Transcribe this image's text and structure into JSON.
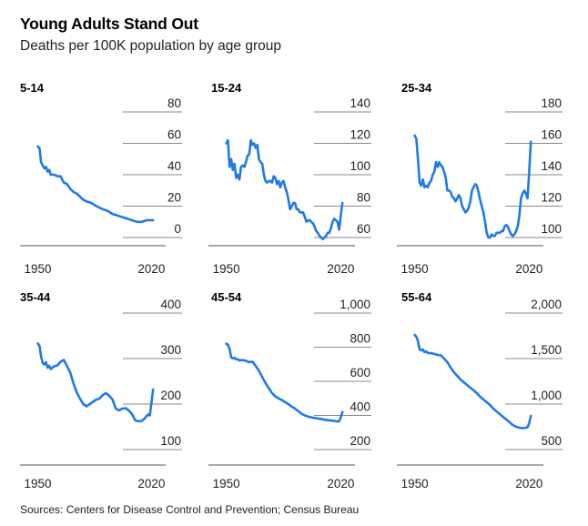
{
  "title": "Young Adults Stand Out",
  "subtitle": "Deaths per 100K population by age group",
  "source": "Sources: Centers for Disease Control and Prevention; Census Bureau",
  "colors": {
    "line": "#1f7ae8",
    "axis": "#555555",
    "gridline": "#888888"
  },
  "chart_data": [
    {
      "type": "line",
      "title": "5-14",
      "ylim": [
        0,
        80
      ],
      "yticks": [
        0,
        20,
        40,
        60,
        80
      ],
      "ytick_labels": [
        "0",
        "20",
        "40",
        "60",
        "80"
      ],
      "xlim": [
        1948,
        2022
      ],
      "xticks": [
        1950,
        2020
      ],
      "xtick_labels": [
        "1950",
        "2020"
      ],
      "series": [
        {
          "x": [
            1950,
            1951,
            1952,
            1953,
            1954,
            1955,
            1956,
            1957,
            1958,
            1960,
            1962,
            1964,
            1966,
            1968,
            1970,
            1972,
            1974,
            1976,
            1978,
            1980,
            1983,
            1986,
            1990,
            1993,
            1996,
            1999,
            2002,
            2005,
            2008,
            2011,
            2014,
            2017,
            2019,
            2020,
            2021
          ],
          "y": [
            58,
            57,
            48,
            46,
            44,
            45,
            42,
            43,
            40,
            40,
            39,
            39,
            35,
            34,
            31,
            29,
            28,
            26,
            24,
            23,
            22,
            20,
            18,
            17,
            15,
            14,
            13,
            12,
            11,
            10,
            10,
            11,
            11,
            11,
            11
          ]
        }
      ]
    },
    {
      "type": "line",
      "title": "15-24",
      "ylim": [
        55,
        140
      ],
      "yticks": [
        60,
        80,
        100,
        120,
        140
      ],
      "ytick_labels": [
        "60",
        "80",
        "100",
        "120",
        "140"
      ],
      "xlim": [
        1948,
        2022
      ],
      "xticks": [
        1950,
        2020
      ],
      "xtick_labels": [
        "1950",
        "2020"
      ],
      "series": [
        {
          "x": [
            1950,
            1951,
            1952,
            1953,
            1954,
            1955,
            1956,
            1957,
            1958,
            1959,
            1960,
            1961,
            1962,
            1963,
            1964,
            1965,
            1966,
            1967,
            1968,
            1969,
            1970,
            1971,
            1972,
            1973,
            1974,
            1975,
            1976,
            1977,
            1978,
            1979,
            1980,
            1981,
            1982,
            1983,
            1984,
            1985,
            1986,
            1987,
            1988,
            1989,
            1990,
            1991,
            1992,
            1993,
            1994,
            1995,
            1996,
            1997,
            1998,
            1999,
            2000,
            2001,
            2002,
            2003,
            2004,
            2005,
            2006,
            2007,
            2008,
            2009,
            2010,
            2011,
            2012,
            2013,
            2014,
            2015,
            2016,
            2017,
            2018,
            2019,
            2020,
            2021
          ],
          "y": [
            120,
            122,
            105,
            110,
            103,
            107,
            98,
            100,
            97,
            105,
            106,
            105,
            108,
            112,
            113,
            122,
            119,
            120,
            117,
            119,
            110,
            108,
            107,
            100,
            96,
            95,
            96,
            96,
            95,
            99,
            98,
            94,
            96,
            92,
            95,
            96,
            92,
            89,
            84,
            78,
            80,
            82,
            82,
            78,
            78,
            76,
            76,
            76,
            73,
            70,
            71,
            71,
            70,
            69,
            67,
            64,
            63,
            61,
            60,
            59,
            60,
            61,
            63,
            63,
            66,
            70,
            72,
            71,
            70,
            65,
            74,
            82
          ]
        }
      ]
    },
    {
      "type": "line",
      "title": "25-34",
      "ylim": [
        98,
        180
      ],
      "yticks": [
        100,
        120,
        140,
        160,
        180
      ],
      "ytick_labels": [
        "100",
        "120",
        "140",
        "160",
        "180"
      ],
      "xlim": [
        1948,
        2022
      ],
      "xticks": [
        1950,
        2020
      ],
      "xtick_labels": [
        "1950",
        "2020"
      ],
      "series": [
        {
          "x": [
            1950,
            1951,
            1952,
            1953,
            1954,
            1955,
            1956,
            1957,
            1958,
            1959,
            1960,
            1961,
            1962,
            1963,
            1964,
            1965,
            1966,
            1967,
            1968,
            1969,
            1970,
            1971,
            1972,
            1973,
            1974,
            1975,
            1976,
            1977,
            1978,
            1979,
            1980,
            1981,
            1982,
            1983,
            1984,
            1985,
            1986,
            1987,
            1988,
            1989,
            1990,
            1991,
            1992,
            1993,
            1994,
            1995,
            1996,
            1997,
            1998,
            1999,
            2000,
            2001,
            2002,
            2003,
            2004,
            2005,
            2006,
            2007,
            2008,
            2009,
            2010,
            2011,
            2012,
            2013,
            2014,
            2015,
            2016,
            2017,
            2018,
            2019,
            2020,
            2021
          ],
          "y": [
            165,
            163,
            150,
            135,
            133,
            137,
            132,
            133,
            132,
            135,
            136,
            140,
            142,
            148,
            145,
            148,
            146,
            145,
            142,
            138,
            130,
            130,
            129,
            126,
            125,
            123,
            125,
            127,
            125,
            120,
            118,
            116,
            117,
            119,
            123,
            130,
            132,
            134,
            133,
            129,
            124,
            120,
            116,
            110,
            103,
            100,
            100,
            102,
            101,
            101,
            103,
            103,
            103,
            104,
            104,
            107,
            108,
            107,
            104,
            102,
            101,
            102,
            104,
            107,
            114,
            125,
            128,
            130,
            128,
            125,
            142,
            161
          ]
        }
      ]
    },
    {
      "type": "line",
      "title": "35-44",
      "ylim": [
        100,
        400
      ],
      "yticks": [
        100,
        200,
        300,
        400
      ],
      "ytick_labels": [
        "100",
        "200",
        "300",
        "400"
      ],
      "xlim": [
        1948,
        2022
      ],
      "xticks": [
        1950,
        2020
      ],
      "xtick_labels": [
        "1950",
        "2020"
      ],
      "series": [
        {
          "x": [
            1950,
            1951,
            1952,
            1953,
            1954,
            1955,
            1956,
            1957,
            1958,
            1960,
            1962,
            1964,
            1966,
            1968,
            1970,
            1972,
            1974,
            1976,
            1978,
            1980,
            1982,
            1984,
            1986,
            1988,
            1990,
            1992,
            1994,
            1996,
            1998,
            2000,
            2002,
            2004,
            2006,
            2008,
            2010,
            2012,
            2014,
            2016,
            2017,
            2018,
            2019,
            2020,
            2021
          ],
          "y": [
            333,
            328,
            305,
            290,
            287,
            292,
            280,
            284,
            277,
            283,
            285,
            293,
            297,
            283,
            269,
            245,
            225,
            212,
            200,
            195,
            200,
            205,
            210,
            212,
            220,
            224,
            218,
            210,
            190,
            186,
            190,
            191,
            186,
            178,
            164,
            162,
            163,
            169,
            174,
            177,
            175,
            203,
            232
          ]
        }
      ]
    },
    {
      "type": "line",
      "title": "45-54",
      "ylim": [
        200,
        1000
      ],
      "yticks": [
        200,
        400,
        600,
        800,
        1000
      ],
      "ytick_labels": [
        "200",
        "400",
        "600",
        "800",
        "1,000"
      ],
      "xlim": [
        1948,
        2022
      ],
      "xticks": [
        1950,
        2020
      ],
      "xtick_labels": [
        "1950",
        "2020"
      ],
      "series": [
        {
          "x": [
            1950,
            1951,
            1952,
            1953,
            1954,
            1955,
            1956,
            1957,
            1958,
            1960,
            1962,
            1964,
            1966,
            1968,
            1970,
            1972,
            1974,
            1976,
            1978,
            1980,
            1982,
            1984,
            1986,
            1988,
            1990,
            1992,
            1994,
            1996,
            1998,
            2000,
            2002,
            2004,
            2006,
            2008,
            2010,
            2012,
            2014,
            2016,
            2018,
            2019,
            2020,
            2021
          ],
          "y": [
            820,
            815,
            790,
            740,
            735,
            738,
            728,
            730,
            722,
            725,
            720,
            712,
            715,
            690,
            662,
            625,
            590,
            560,
            530,
            512,
            500,
            490,
            478,
            466,
            452,
            440,
            425,
            410,
            400,
            393,
            389,
            385,
            382,
            380,
            375,
            372,
            370,
            368,
            365,
            366,
            388,
            420
          ]
        }
      ]
    },
    {
      "type": "line",
      "title": "55-64",
      "ylim": [
        500,
        2000
      ],
      "yticks": [
        500,
        1000,
        1500,
        2000
      ],
      "ytick_labels": [
        "500",
        "1,000",
        "1,500",
        "2,000"
      ],
      "xlim": [
        1948,
        2022
      ],
      "xticks": [
        1950,
        2020
      ],
      "xtick_labels": [
        "1950",
        "2020"
      ],
      "series": [
        {
          "x": [
            1950,
            1951,
            1952,
            1953,
            1954,
            1955,
            1956,
            1957,
            1958,
            1960,
            1962,
            1964,
            1966,
            1968,
            1970,
            1972,
            1974,
            1976,
            1978,
            1980,
            1982,
            1984,
            1986,
            1988,
            1990,
            1992,
            1994,
            1996,
            1998,
            2000,
            2002,
            2004,
            2006,
            2008,
            2010,
            2012,
            2014,
            2016,
            2018,
            2019,
            2020,
            2021
          ],
          "y": [
            1760,
            1740,
            1690,
            1600,
            1590,
            1600,
            1570,
            1580,
            1560,
            1560,
            1550,
            1540,
            1535,
            1500,
            1460,
            1400,
            1350,
            1310,
            1270,
            1240,
            1210,
            1180,
            1150,
            1120,
            1080,
            1050,
            1020,
            990,
            950,
            920,
            890,
            860,
            830,
            800,
            770,
            750,
            740,
            735,
            740,
            745,
            790,
            870
          ]
        }
      ]
    }
  ]
}
